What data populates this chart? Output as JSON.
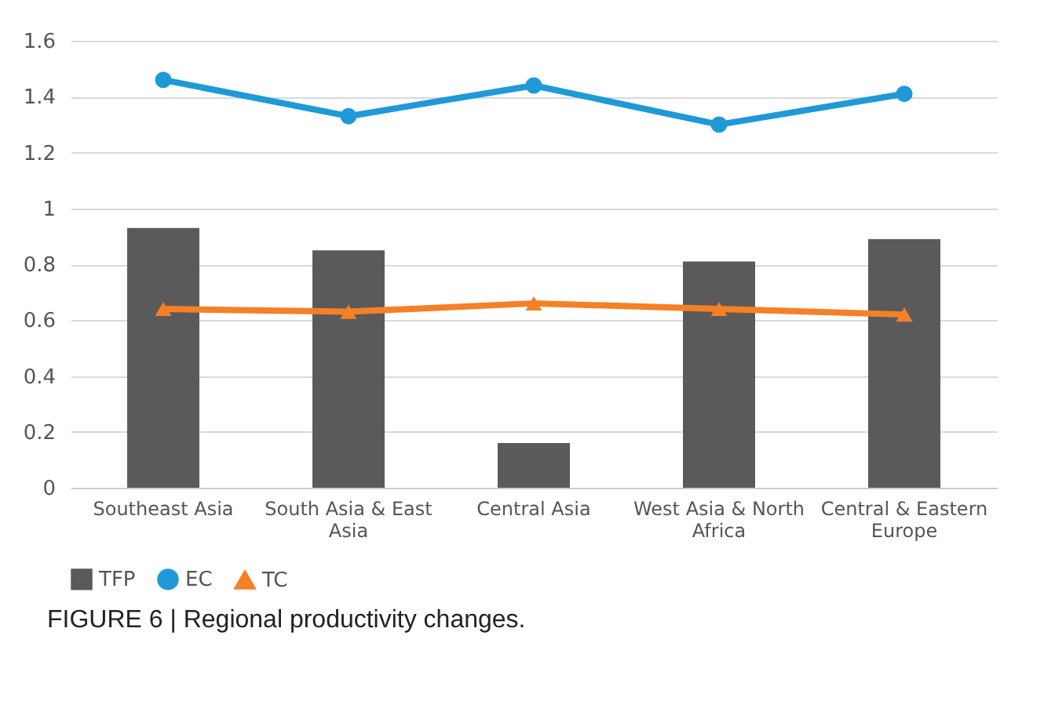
{
  "chart_data": {
    "type": "bar",
    "categories": [
      "Southeast Asia",
      "South Asia & East Asia",
      "Central Asia",
      "West Asia & North Africa",
      "Central & Eastern Europe"
    ],
    "series": [
      {
        "name": "TFP",
        "color": "#5a5a5a",
        "values": [
          0.93,
          0.85,
          0.16,
          0.81,
          0.89
        ]
      },
      {
        "name": "EC",
        "type": "line",
        "marker": "circle",
        "color": "#1f9ad6",
        "values": [
          1.46,
          1.33,
          1.44,
          1.3,
          1.41
        ]
      },
      {
        "name": "TC",
        "type": "line",
        "marker": "triangle",
        "color": "#f58025",
        "values": [
          0.64,
          0.63,
          0.66,
          0.64,
          0.62
        ]
      }
    ],
    "ylim": [
      0,
      1.6
    ],
    "yticks": [
      0,
      0.2,
      0.4,
      0.6,
      0.8,
      1,
      1.2,
      1.4,
      1.6
    ],
    "grid": "y",
    "legend": "bottom",
    "annotations": [
      "FIGURE 6 | Regional productivity changes."
    ]
  }
}
